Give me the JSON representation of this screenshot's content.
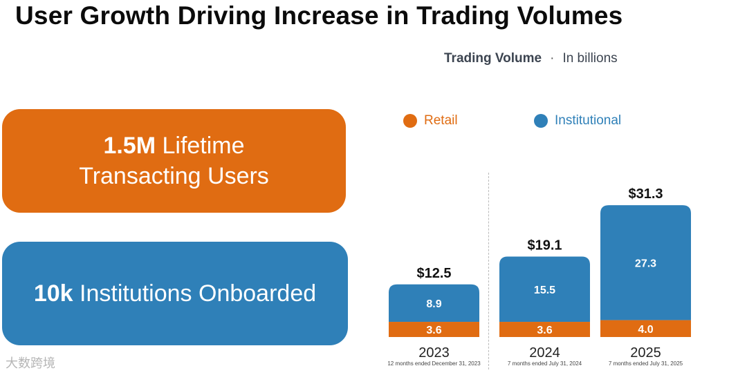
{
  "title": "User Growth Driving Increase in Trading Volumes",
  "subtitle": {
    "label": "Trading Volume",
    "separator": "·",
    "unit": "In billions"
  },
  "cards": {
    "users": {
      "value": "1.5M",
      "line1_rest": " Lifetime",
      "line2": "Transacting Users",
      "color": "#e06c12"
    },
    "institutions": {
      "value": "10k",
      "rest": " Institutions Onboarded",
      "color": "#2f80b8"
    }
  },
  "legend": {
    "retail": "Retail",
    "institutional": "Institutional"
  },
  "colors": {
    "retail": "#e06c12",
    "institutional": "#2f80b8"
  },
  "watermark": "大数跨境",
  "chart_data": {
    "type": "bar",
    "stacked": true,
    "title": "Trading Volume",
    "unit": "In billions",
    "categories": [
      "2023",
      "2024",
      "2025"
    ],
    "notes": [
      "12 months ended December 31, 2023",
      "7 months ended July 31, 2024",
      "7 months ended July 31, 2025"
    ],
    "series": [
      {
        "name": "Retail",
        "values": [
          3.6,
          3.6,
          4.0
        ],
        "labels": [
          "3.6",
          "3.6",
          "4.0"
        ]
      },
      {
        "name": "Institutional",
        "values": [
          8.9,
          15.5,
          27.3
        ],
        "labels": [
          "8.9",
          "15.5",
          "27.3"
        ]
      }
    ],
    "totals": [
      "$12.5",
      "$19.1",
      "$31.3"
    ]
  }
}
